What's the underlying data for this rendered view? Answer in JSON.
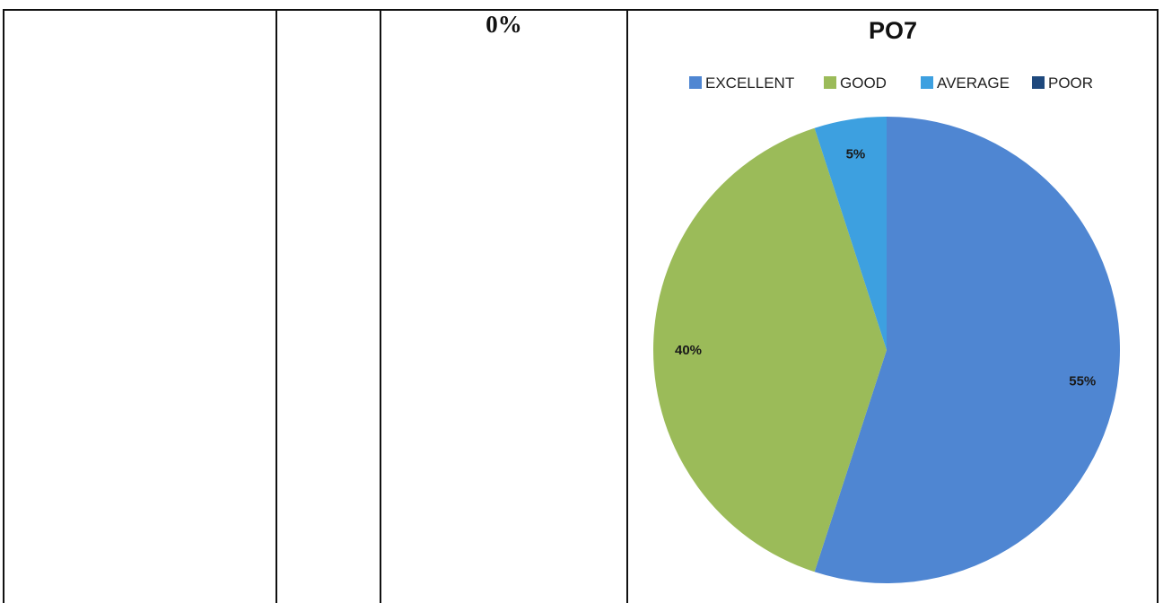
{
  "table": {
    "percent_cell": "0%"
  },
  "chart_data": {
    "type": "pie",
    "title": "PO7",
    "legend_position": "top",
    "categories": [
      "EXCELLENT",
      "GOOD",
      "AVERAGE",
      "POOR"
    ],
    "values": [
      55,
      40,
      5,
      0
    ],
    "labels": [
      "55%",
      "40%",
      "5%",
      ""
    ],
    "colors": [
      "#4F86D2",
      "#9BBB59",
      "#3DA0E0",
      "#1F497D"
    ]
  }
}
